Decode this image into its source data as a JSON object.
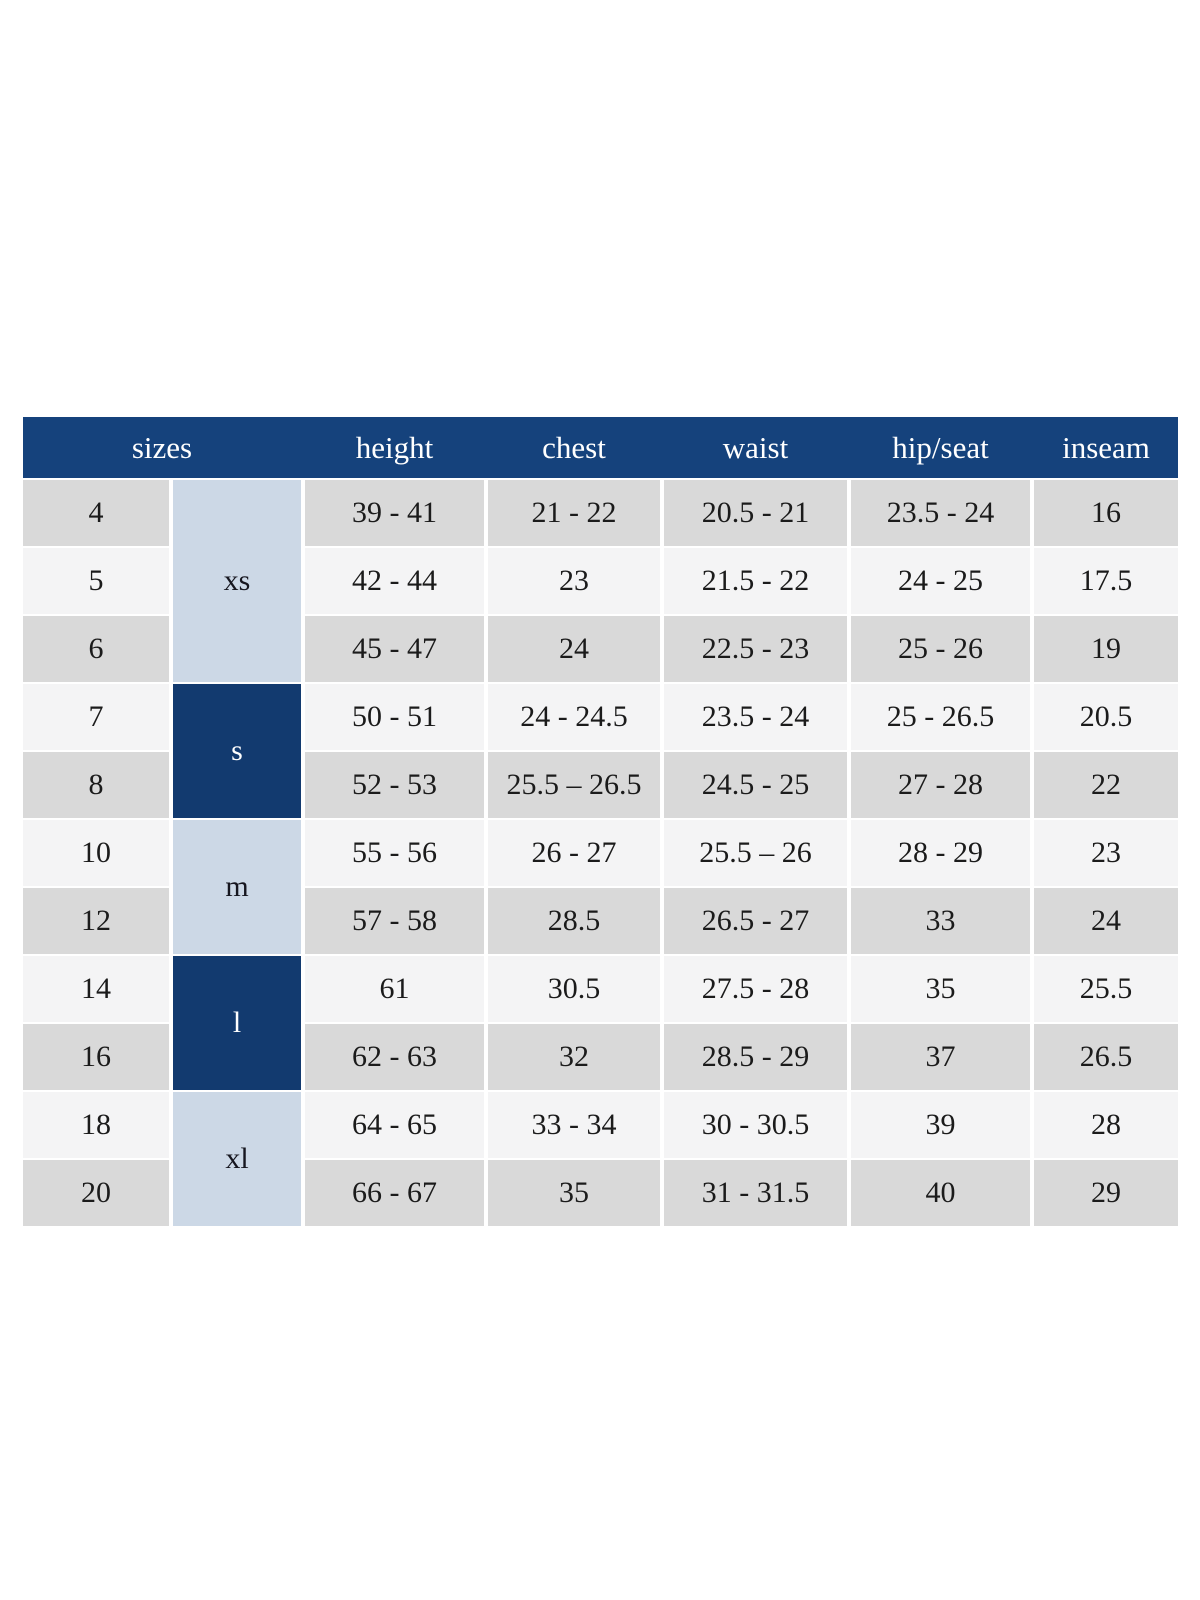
{
  "chart_data": {
    "type": "table",
    "headers": {
      "sizes": "sizes",
      "height": "height",
      "chest": "chest",
      "waist": "waist",
      "hip_seat": "hip/seat",
      "inseam": "inseam"
    },
    "groups": [
      {
        "label": "xs",
        "sizes_covered": [
          "4",
          "5",
          "6"
        ]
      },
      {
        "label": "s",
        "sizes_covered": [
          "7",
          "8"
        ]
      },
      {
        "label": "m",
        "sizes_covered": [
          "10",
          "12"
        ]
      },
      {
        "label": "l",
        "sizes_covered": [
          "14",
          "16"
        ]
      },
      {
        "label": "xl",
        "sizes_covered": [
          "18",
          "20"
        ]
      }
    ],
    "rows": [
      {
        "size": "4",
        "height": "39 - 41",
        "chest": "21 - 22",
        "waist": "20.5 - 21",
        "hip_seat": "23.5 - 24",
        "inseam": "16"
      },
      {
        "size": "5",
        "height": "42 - 44",
        "chest": "23",
        "waist": "21.5 - 22",
        "hip_seat": "24 - 25",
        "inseam": "17.5"
      },
      {
        "size": "6",
        "height": "45 - 47",
        "chest": "24",
        "waist": "22.5 - 23",
        "hip_seat": "25 - 26",
        "inseam": "19"
      },
      {
        "size": "7",
        "height": "50 - 51",
        "chest": "24 - 24.5",
        "waist": "23.5 - 24",
        "hip_seat": "25 - 26.5",
        "inseam": "20.5"
      },
      {
        "size": "8",
        "height": "52 - 53",
        "chest": "25.5 – 26.5",
        "waist": "24.5 - 25",
        "hip_seat": "27 - 28",
        "inseam": "22"
      },
      {
        "size": "10",
        "height": "55 - 56",
        "chest": "26 - 27",
        "waist": "25.5 – 26",
        "hip_seat": "28 - 29",
        "inseam": "23"
      },
      {
        "size": "12",
        "height": "57 - 58",
        "chest": "28.5",
        "waist": "26.5 - 27",
        "hip_seat": "33",
        "inseam": "24"
      },
      {
        "size": "14",
        "height": "61",
        "chest": "30.5",
        "waist": "27.5 - 28",
        "hip_seat": "35",
        "inseam": "25.5"
      },
      {
        "size": "16",
        "height": "62 - 63",
        "chest": "32",
        "waist": "28.5 - 29",
        "hip_seat": "37",
        "inseam": "26.5"
      },
      {
        "size": "18",
        "height": "64 - 65",
        "chest": "33 - 34",
        "waist": "30 - 30.5",
        "hip_seat": "39",
        "inseam": "28"
      },
      {
        "size": "20",
        "height": "66 - 67",
        "chest": "35",
        "waist": "31 - 31.5",
        "hip_seat": "40",
        "inseam": "29"
      }
    ],
    "layout_hints": {
      "grid": "off",
      "header_position": "top",
      "group_column_position": "second column, merged cells"
    },
    "colors": {
      "header_bg": "#15427c",
      "header_text": "#ffffff",
      "group_dark_bg": "#123a6f",
      "group_dark_text": "#ffffff",
      "group_light_bg": "#ccd8e6",
      "row_gray_bg": "#d9d9d9",
      "row_light_bg": "#f4f4f5",
      "body_text": "#1b1b1b",
      "page_bg": "#ffffff"
    }
  }
}
